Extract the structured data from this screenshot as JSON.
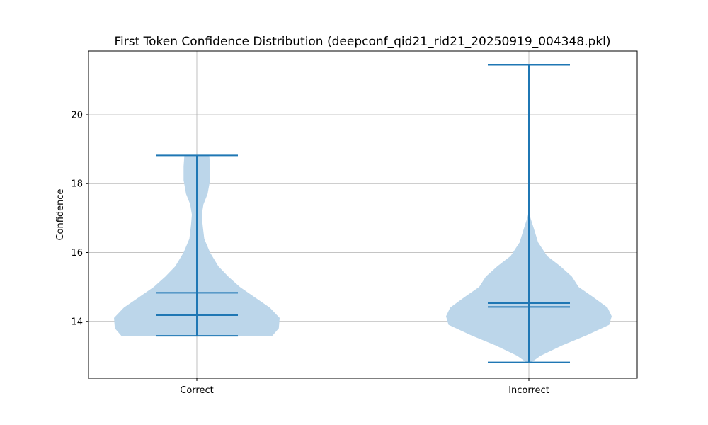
{
  "chart_data": {
    "type": "violin",
    "title": "First Token Confidence Distribution (deepconf_qid21_rid21_20250919_004348.pkl)",
    "xlabel": "",
    "ylabel": "Confidence",
    "categories": [
      "Correct",
      "Incorrect"
    ],
    "ylim": [
      12.35,
      21.85
    ],
    "yticks": [
      14,
      16,
      18,
      20
    ],
    "grid": true,
    "colors": {
      "body": "#bcd6ea",
      "lines": "#1f77b4",
      "grid": "#b0b0b0"
    },
    "violins": [
      {
        "category": "Correct",
        "min": 13.58,
        "max": 18.82,
        "mean": 14.83,
        "median": 14.18,
        "density_y": [
          13.58,
          13.8,
          14.1,
          14.4,
          14.7,
          15.0,
          15.3,
          15.6,
          16.0,
          16.4,
          16.8,
          17.1,
          17.4,
          17.7,
          18.1,
          18.5,
          18.82
        ],
        "density_w": [
          0.91,
          0.99,
          1.0,
          0.88,
          0.7,
          0.52,
          0.38,
          0.26,
          0.16,
          0.09,
          0.07,
          0.06,
          0.08,
          0.13,
          0.16,
          0.16,
          0.15
        ]
      },
      {
        "category": "Incorrect",
        "min": 12.81,
        "max": 21.45,
        "mean": 14.53,
        "median": 14.42,
        "density_y": [
          12.81,
          13.0,
          13.3,
          13.6,
          13.9,
          14.15,
          14.4,
          14.7,
          15.0,
          15.3,
          15.6,
          15.9,
          16.3,
          16.7,
          17.0,
          17.2,
          21.45
        ],
        "density_w": [
          0.03,
          0.14,
          0.4,
          0.7,
          0.97,
          1.0,
          0.95,
          0.78,
          0.6,
          0.52,
          0.38,
          0.22,
          0.11,
          0.06,
          0.02,
          0.0,
          0.0
        ]
      }
    ]
  }
}
